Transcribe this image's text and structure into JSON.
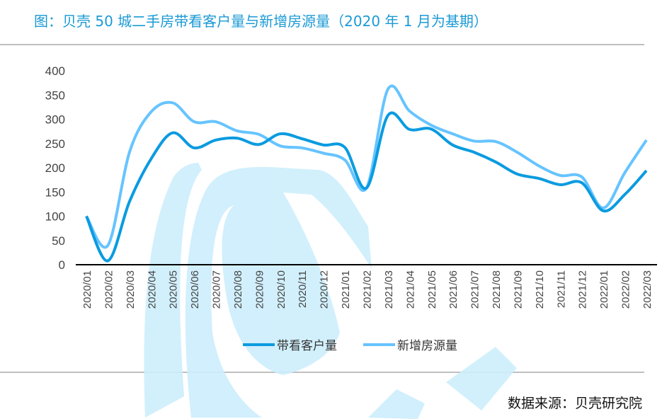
{
  "title": "图：贝壳 50 城二手房带看客户量与新增房源量（2020 年 1 月为基期）",
  "source": "数据来源：贝壳研究院",
  "colors": {
    "title": "#1b9ad6",
    "series1": "#0a9be0",
    "series2": "#66c4ff",
    "watermark": "#cdeefc"
  },
  "chart_data": {
    "type": "line",
    "title": "",
    "xlabel": "",
    "ylabel": "",
    "ylim": [
      0,
      400
    ],
    "yticks": [
      0,
      50,
      100,
      150,
      200,
      250,
      300,
      350,
      400
    ],
    "grid": false,
    "legend": "bottom",
    "categories": [
      "2020/01",
      "2020/02",
      "2020/03",
      "2020/04",
      "2020/05",
      "2020/06",
      "2020/07",
      "2020/08",
      "2020/09",
      "2020/10",
      "2020/11",
      "2020/12",
      "2021/01",
      "2021/02",
      "2021/03",
      "2021/04",
      "2021/05",
      "2021/06",
      "2021/07",
      "2021/08",
      "2021/09",
      "2021/10",
      "2021/11",
      "2021/12",
      "2022/01",
      "2022/02",
      "2022/03"
    ],
    "series": [
      {
        "name": "带看客户量",
        "values": [
          100,
          8,
          130,
          218,
          272,
          241,
          257,
          261,
          248,
          270,
          260,
          247,
          242,
          158,
          308,
          279,
          280,
          247,
          232,
          212,
          187,
          178,
          165,
          169,
          111,
          145,
          194
        ]
      },
      {
        "name": "新增房源量",
        "values": [
          100,
          40,
          232,
          315,
          334,
          295,
          295,
          276,
          269,
          245,
          241,
          230,
          216,
          158,
          362,
          317,
          288,
          270,
          255,
          254,
          232,
          204,
          184,
          181,
          117,
          190,
          257
        ]
      }
    ]
  }
}
